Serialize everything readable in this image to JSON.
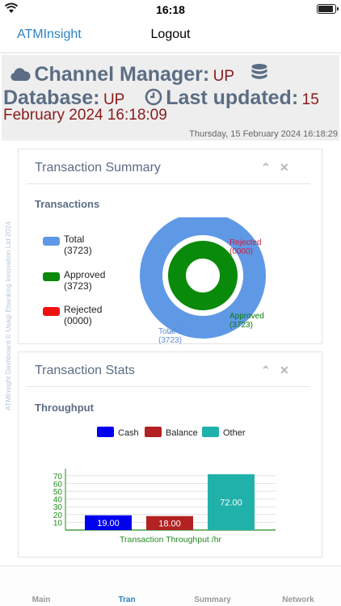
{
  "status_bar": {
    "time": "16:18"
  },
  "nav": {
    "brand": "ATMInsight",
    "logout": "Logout"
  },
  "header": {
    "channel_label": "Channel Manager:",
    "channel_value": "UP",
    "database_label": "Database:",
    "database_value": "UP",
    "updated_label": "Last updated:",
    "updated_value_1": "15",
    "updated_value_2": "February 2024 16:18:09",
    "current_datetime": "Thursday, 15 February 2024 16:18:29"
  },
  "watermark": "ATMInsight Dashboard © Usagi Ebanking Innovation Ltd 2024",
  "summary_panel": {
    "title": "Transaction Summary",
    "subtitle": "Transactions",
    "legend": [
      {
        "label": "Total",
        "count": "(3723)",
        "color": "#5f99e6"
      },
      {
        "label": "Approved",
        "count": "(3723)",
        "color": "#0a8a0a"
      },
      {
        "label": "Rejected",
        "count": "(0000)",
        "color": "#ee1111"
      }
    ]
  },
  "stats_panel": {
    "title": "Transaction Stats",
    "subtitle": "Throughput"
  },
  "chart_data": [
    {
      "type": "pie",
      "style": "concentric-donut",
      "slices": [
        {
          "label": "Total",
          "value": 3723,
          "display": "(3723)",
          "color": "#5f99e6"
        },
        {
          "label": "Approved",
          "value": 3723,
          "display": "(3723)",
          "color": "#0a8a0a"
        },
        {
          "label": "Rejected",
          "value": 0,
          "display": "(0000)",
          "color": "#ee1111"
        }
      ]
    },
    {
      "type": "bar",
      "categories": [
        "Cash",
        "Balance",
        "Other"
      ],
      "values": [
        19.0,
        18.0,
        72.0
      ],
      "value_labels": [
        "19.00",
        "18.00",
        "72.00"
      ],
      "colors": [
        "#0000ee",
        "#b22222",
        "#20b2aa"
      ],
      "xlabel": "Transaction Throughput /hr",
      "ylim": [
        0,
        75
      ],
      "yticks": [
        10,
        20,
        30,
        40,
        50,
        60,
        70
      ],
      "legend_position": "top-center",
      "grid": true
    }
  ],
  "tabs": [
    {
      "label": "Main",
      "active": false
    },
    {
      "label": "Tran",
      "active": true
    },
    {
      "label": "Summary",
      "active": false
    },
    {
      "label": "Network",
      "active": false
    }
  ]
}
